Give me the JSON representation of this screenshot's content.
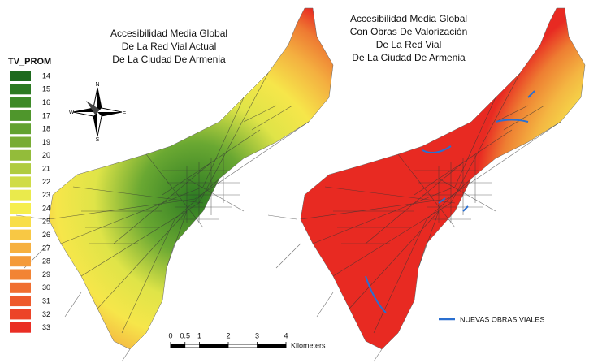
{
  "maps": [
    {
      "title": [
        "Accesibilidad Media Global",
        "De La Red Vial Actual",
        "De La Ciudad De Armenia"
      ]
    },
    {
      "title": [
        "Accesibilidad Media Global",
        "Con Obras De Valorización",
        "De La Red Vial",
        "De La Ciudad De Armenia"
      ]
    }
  ],
  "legend": {
    "title": "TV_PROM",
    "items": [
      {
        "label": 14,
        "color": "#1e6a1e"
      },
      {
        "label": 15,
        "color": "#2c7a22"
      },
      {
        "label": 16,
        "color": "#3d8a28"
      },
      {
        "label": 17,
        "color": "#4f962c"
      },
      {
        "label": 18,
        "color": "#62a230"
      },
      {
        "label": 19,
        "color": "#78ac34"
      },
      {
        "label": 20,
        "color": "#93bc3a"
      },
      {
        "label": 21,
        "color": "#b0cc40"
      },
      {
        "label": 22,
        "color": "#d0dc46"
      },
      {
        "label": 23,
        "color": "#eaea4c"
      },
      {
        "label": 24,
        "color": "#f6ee4c"
      },
      {
        "label": 25,
        "color": "#f8de48"
      },
      {
        "label": 26,
        "color": "#f8c844"
      },
      {
        "label": 27,
        "color": "#f6b040"
      },
      {
        "label": 28,
        "color": "#f49a3a"
      },
      {
        "label": 29,
        "color": "#f28434"
      },
      {
        "label": 30,
        "color": "#f06e30"
      },
      {
        "label": 31,
        "color": "#ee5a2c"
      },
      {
        "label": 32,
        "color": "#ec4428"
      },
      {
        "label": 33,
        "color": "#ea2e24"
      }
    ]
  },
  "compass": {
    "north": "N",
    "south": "S",
    "east": "E",
    "west": "W"
  },
  "scale_bar": {
    "ticks": [
      0,
      0.5,
      1,
      2,
      3,
      4
    ],
    "unit": "Kilometers"
  },
  "new_roads_legend": "NUEVAS OBRAS VIALES"
}
